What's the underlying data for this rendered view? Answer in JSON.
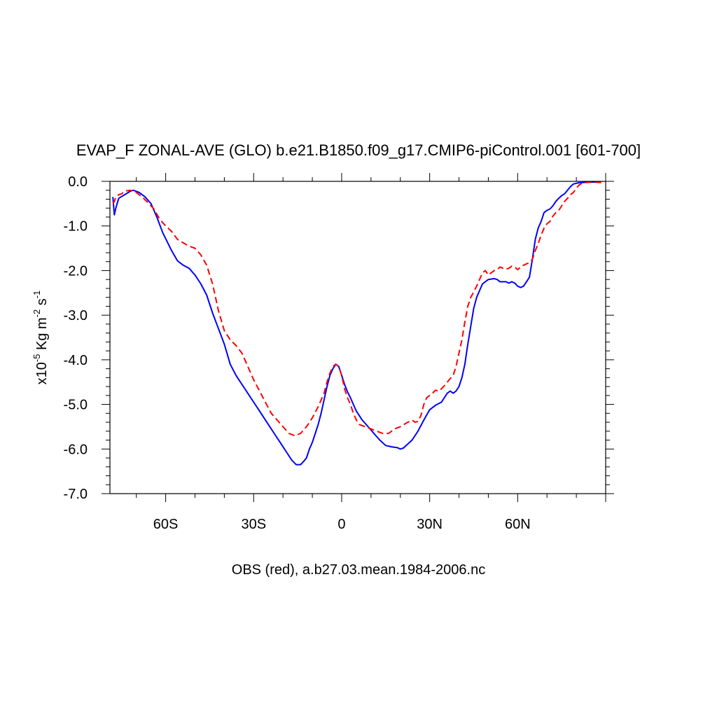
{
  "chart_data": {
    "type": "line",
    "title": "EVAP_F ZONAL-AVE (GLO) b.e21.B1850.f09_g17.CMIP6-piControl.001 [601-700]",
    "xlabel": "OBS (red), a.b27.03.mean.1984-2006.nc",
    "ylabel": {
      "prefix": "x10",
      "exp1": "-5",
      "mid": " Kg m",
      "exp2": "-2",
      "mid2": " s",
      "exp3": "-1"
    },
    "xlim": [
      -79,
      90
    ],
    "ylim": [
      -7,
      0
    ],
    "x_ticks": [
      {
        "value": -60,
        "label": "60S"
      },
      {
        "value": -30,
        "label": "30S"
      },
      {
        "value": 0,
        "label": "0"
      },
      {
        "value": 30,
        "label": "30N"
      },
      {
        "value": 60,
        "label": "60N"
      }
    ],
    "y_ticks": [
      {
        "value": 0,
        "label": "0.0"
      },
      {
        "value": -1,
        "label": "-1.0"
      },
      {
        "value": -2,
        "label": "-2.0"
      },
      {
        "value": -3,
        "label": "-3.0"
      },
      {
        "value": -4,
        "label": "-4.0"
      },
      {
        "value": -5,
        "label": "-5.0"
      },
      {
        "value": -6,
        "label": "-6.0"
      },
      {
        "value": -7,
        "label": "-7.0"
      }
    ],
    "series": [
      {
        "color": "#0000ff",
        "style": "solid",
        "points": [
          [
            -78,
            -0.35
          ],
          [
            -77.5,
            -0.75
          ],
          [
            -77,
            -0.6
          ],
          [
            -76,
            -0.38
          ],
          [
            -74,
            -0.3
          ],
          [
            -72,
            -0.22
          ],
          [
            -71,
            -0.2
          ],
          [
            -69,
            -0.25
          ],
          [
            -67,
            -0.35
          ],
          [
            -65,
            -0.5
          ],
          [
            -63,
            -0.8
          ],
          [
            -61,
            -1.15
          ],
          [
            -58,
            -1.55
          ],
          [
            -56,
            -1.78
          ],
          [
            -54,
            -1.88
          ],
          [
            -52,
            -1.95
          ],
          [
            -50,
            -2.1
          ],
          [
            -48,
            -2.3
          ],
          [
            -46,
            -2.55
          ],
          [
            -44,
            -2.95
          ],
          [
            -42,
            -3.3
          ],
          [
            -40,
            -3.65
          ],
          [
            -38,
            -4.1
          ],
          [
            -36,
            -4.35
          ],
          [
            -34,
            -4.55
          ],
          [
            -31,
            -4.85
          ],
          [
            -28,
            -5.15
          ],
          [
            -25,
            -5.45
          ],
          [
            -23,
            -5.65
          ],
          [
            -21,
            -5.85
          ],
          [
            -19,
            -6.05
          ],
          [
            -17,
            -6.25
          ],
          [
            -15.5,
            -6.35
          ],
          [
            -14,
            -6.35
          ],
          [
            -13,
            -6.28
          ],
          [
            -12,
            -6.2
          ],
          [
            -11,
            -6.0
          ],
          [
            -10,
            -5.85
          ],
          [
            -9,
            -5.65
          ],
          [
            -8,
            -5.45
          ],
          [
            -7,
            -5.2
          ],
          [
            -6,
            -4.9
          ],
          [
            -5,
            -4.6
          ],
          [
            -4,
            -4.35
          ],
          [
            -3,
            -4.2
          ],
          [
            -2,
            -4.1
          ],
          [
            -1,
            -4.15
          ],
          [
            0,
            -4.35
          ],
          [
            1,
            -4.55
          ],
          [
            2,
            -4.72
          ],
          [
            3,
            -4.85
          ],
          [
            4,
            -5.0
          ],
          [
            5,
            -5.15
          ],
          [
            7,
            -5.35
          ],
          [
            9,
            -5.5
          ],
          [
            11,
            -5.65
          ],
          [
            13,
            -5.8
          ],
          [
            15,
            -5.92
          ],
          [
            17,
            -5.95
          ],
          [
            19,
            -5.97
          ],
          [
            20,
            -6.0
          ],
          [
            21,
            -5.98
          ],
          [
            22,
            -5.92
          ],
          [
            24,
            -5.8
          ],
          [
            26,
            -5.6
          ],
          [
            28,
            -5.35
          ],
          [
            30,
            -5.12
          ],
          [
            32,
            -5.02
          ],
          [
            34,
            -4.95
          ],
          [
            35,
            -4.85
          ],
          [
            36,
            -4.75
          ],
          [
            37,
            -4.7
          ],
          [
            38,
            -4.75
          ],
          [
            39,
            -4.7
          ],
          [
            40,
            -4.6
          ],
          [
            41,
            -4.4
          ],
          [
            42,
            -4.1
          ],
          [
            43,
            -3.65
          ],
          [
            44,
            -3.25
          ],
          [
            45,
            -2.85
          ],
          [
            46,
            -2.6
          ],
          [
            47,
            -2.45
          ],
          [
            48,
            -2.3
          ],
          [
            50,
            -2.2
          ],
          [
            52,
            -2.18
          ],
          [
            53,
            -2.2
          ],
          [
            54,
            -2.25
          ],
          [
            56,
            -2.25
          ],
          [
            57,
            -2.28
          ],
          [
            58,
            -2.25
          ],
          [
            59,
            -2.28
          ],
          [
            60,
            -2.35
          ],
          [
            61,
            -2.38
          ],
          [
            62,
            -2.35
          ],
          [
            63,
            -2.25
          ],
          [
            64,
            -2.15
          ],
          [
            65,
            -1.75
          ],
          [
            66,
            -1.3
          ],
          [
            67,
            -1.05
          ],
          [
            68,
            -0.9
          ],
          [
            69,
            -0.7
          ],
          [
            70,
            -0.65
          ],
          [
            71,
            -0.62
          ],
          [
            72,
            -0.55
          ],
          [
            73,
            -0.45
          ],
          [
            74,
            -0.38
          ],
          [
            75,
            -0.32
          ],
          [
            76,
            -0.28
          ],
          [
            77,
            -0.2
          ],
          [
            78,
            -0.12
          ],
          [
            79,
            -0.06
          ],
          [
            81,
            -0.03
          ],
          [
            84,
            -0.02
          ],
          [
            88,
            -0.01
          ]
        ]
      },
      {
        "color": "#ff0000",
        "style": "dashed",
        "points": [
          [
            -78,
            -0.5
          ],
          [
            -77.5,
            -0.45
          ],
          [
            -77,
            -0.35
          ],
          [
            -76,
            -0.3
          ],
          [
            -75,
            -0.28
          ],
          [
            -74,
            -0.22
          ],
          [
            -72,
            -0.2
          ],
          [
            -70,
            -0.25
          ],
          [
            -68,
            -0.35
          ],
          [
            -66,
            -0.48
          ],
          [
            -64,
            -0.62
          ],
          [
            -62,
            -0.85
          ],
          [
            -60,
            -1.0
          ],
          [
            -58,
            -1.12
          ],
          [
            -56,
            -1.3
          ],
          [
            -54,
            -1.38
          ],
          [
            -52,
            -1.45
          ],
          [
            -50,
            -1.5
          ],
          [
            -48,
            -1.65
          ],
          [
            -46,
            -1.88
          ],
          [
            -44,
            -2.3
          ],
          [
            -42,
            -2.9
          ],
          [
            -40,
            -3.35
          ],
          [
            -38,
            -3.55
          ],
          [
            -36,
            -3.68
          ],
          [
            -34,
            -3.85
          ],
          [
            -32,
            -4.15
          ],
          [
            -30,
            -4.45
          ],
          [
            -28,
            -4.7
          ],
          [
            -26,
            -4.95
          ],
          [
            -24,
            -5.2
          ],
          [
            -22,
            -5.35
          ],
          [
            -20,
            -5.5
          ],
          [
            -18,
            -5.65
          ],
          [
            -16,
            -5.7
          ],
          [
            -14,
            -5.65
          ],
          [
            -12,
            -5.5
          ],
          [
            -10,
            -5.3
          ],
          [
            -8,
            -5.05
          ],
          [
            -6,
            -4.75
          ],
          [
            -5,
            -4.5
          ],
          [
            -4,
            -4.3
          ],
          [
            -3,
            -4.15
          ],
          [
            -2,
            -4.1
          ],
          [
            -1,
            -4.15
          ],
          [
            0,
            -4.35
          ],
          [
            1,
            -4.65
          ],
          [
            2,
            -4.85
          ],
          [
            3,
            -5.0
          ],
          [
            4,
            -5.2
          ],
          [
            5,
            -5.35
          ],
          [
            6,
            -5.45
          ],
          [
            8,
            -5.5
          ],
          [
            10,
            -5.55
          ],
          [
            12,
            -5.6
          ],
          [
            14,
            -5.65
          ],
          [
            16,
            -5.65
          ],
          [
            18,
            -5.55
          ],
          [
            20,
            -5.5
          ],
          [
            22,
            -5.42
          ],
          [
            24,
            -5.35
          ],
          [
            25,
            -5.4
          ],
          [
            26,
            -5.38
          ],
          [
            27,
            -5.25
          ],
          [
            28,
            -5.0
          ],
          [
            29,
            -4.85
          ],
          [
            30,
            -4.8
          ],
          [
            31,
            -4.75
          ],
          [
            32,
            -4.68
          ],
          [
            33,
            -4.7
          ],
          [
            34,
            -4.65
          ],
          [
            35,
            -4.58
          ],
          [
            36,
            -4.5
          ],
          [
            37,
            -4.42
          ],
          [
            38,
            -4.35
          ],
          [
            39,
            -4.15
          ],
          [
            40,
            -3.85
          ],
          [
            41,
            -3.55
          ],
          [
            42,
            -3.15
          ],
          [
            43,
            -2.8
          ],
          [
            44,
            -2.6
          ],
          [
            45,
            -2.48
          ],
          [
            46,
            -2.35
          ],
          [
            47,
            -2.2
          ],
          [
            48,
            -2.05
          ],
          [
            49,
            -2.0
          ],
          [
            50,
            -2.1
          ],
          [
            51,
            -2.05
          ],
          [
            52,
            -2.0
          ],
          [
            53,
            -1.98
          ],
          [
            54,
            -1.92
          ],
          [
            55,
            -1.95
          ],
          [
            56,
            -1.97
          ],
          [
            57,
            -1.95
          ],
          [
            58,
            -1.9
          ],
          [
            59,
            -1.92
          ],
          [
            60,
            -1.98
          ],
          [
            61,
            -1.92
          ],
          [
            62,
            -1.88
          ],
          [
            63,
            -1.85
          ],
          [
            64,
            -1.82
          ],
          [
            65,
            -1.75
          ],
          [
            66,
            -1.55
          ],
          [
            67,
            -1.4
          ],
          [
            68,
            -1.2
          ],
          [
            69,
            -1.05
          ],
          [
            70,
            -0.95
          ],
          [
            71,
            -0.9
          ],
          [
            72,
            -0.78
          ],
          [
            73,
            -0.7
          ],
          [
            74,
            -0.65
          ],
          [
            75,
            -0.55
          ],
          [
            76,
            -0.45
          ],
          [
            77,
            -0.38
          ],
          [
            78,
            -0.3
          ],
          [
            79,
            -0.25
          ],
          [
            80,
            -0.15
          ],
          [
            81,
            -0.08
          ],
          [
            82,
            -0.04
          ],
          [
            84,
            -0.02
          ],
          [
            87,
            -0.02
          ],
          [
            89,
            -0.03
          ]
        ]
      }
    ]
  }
}
